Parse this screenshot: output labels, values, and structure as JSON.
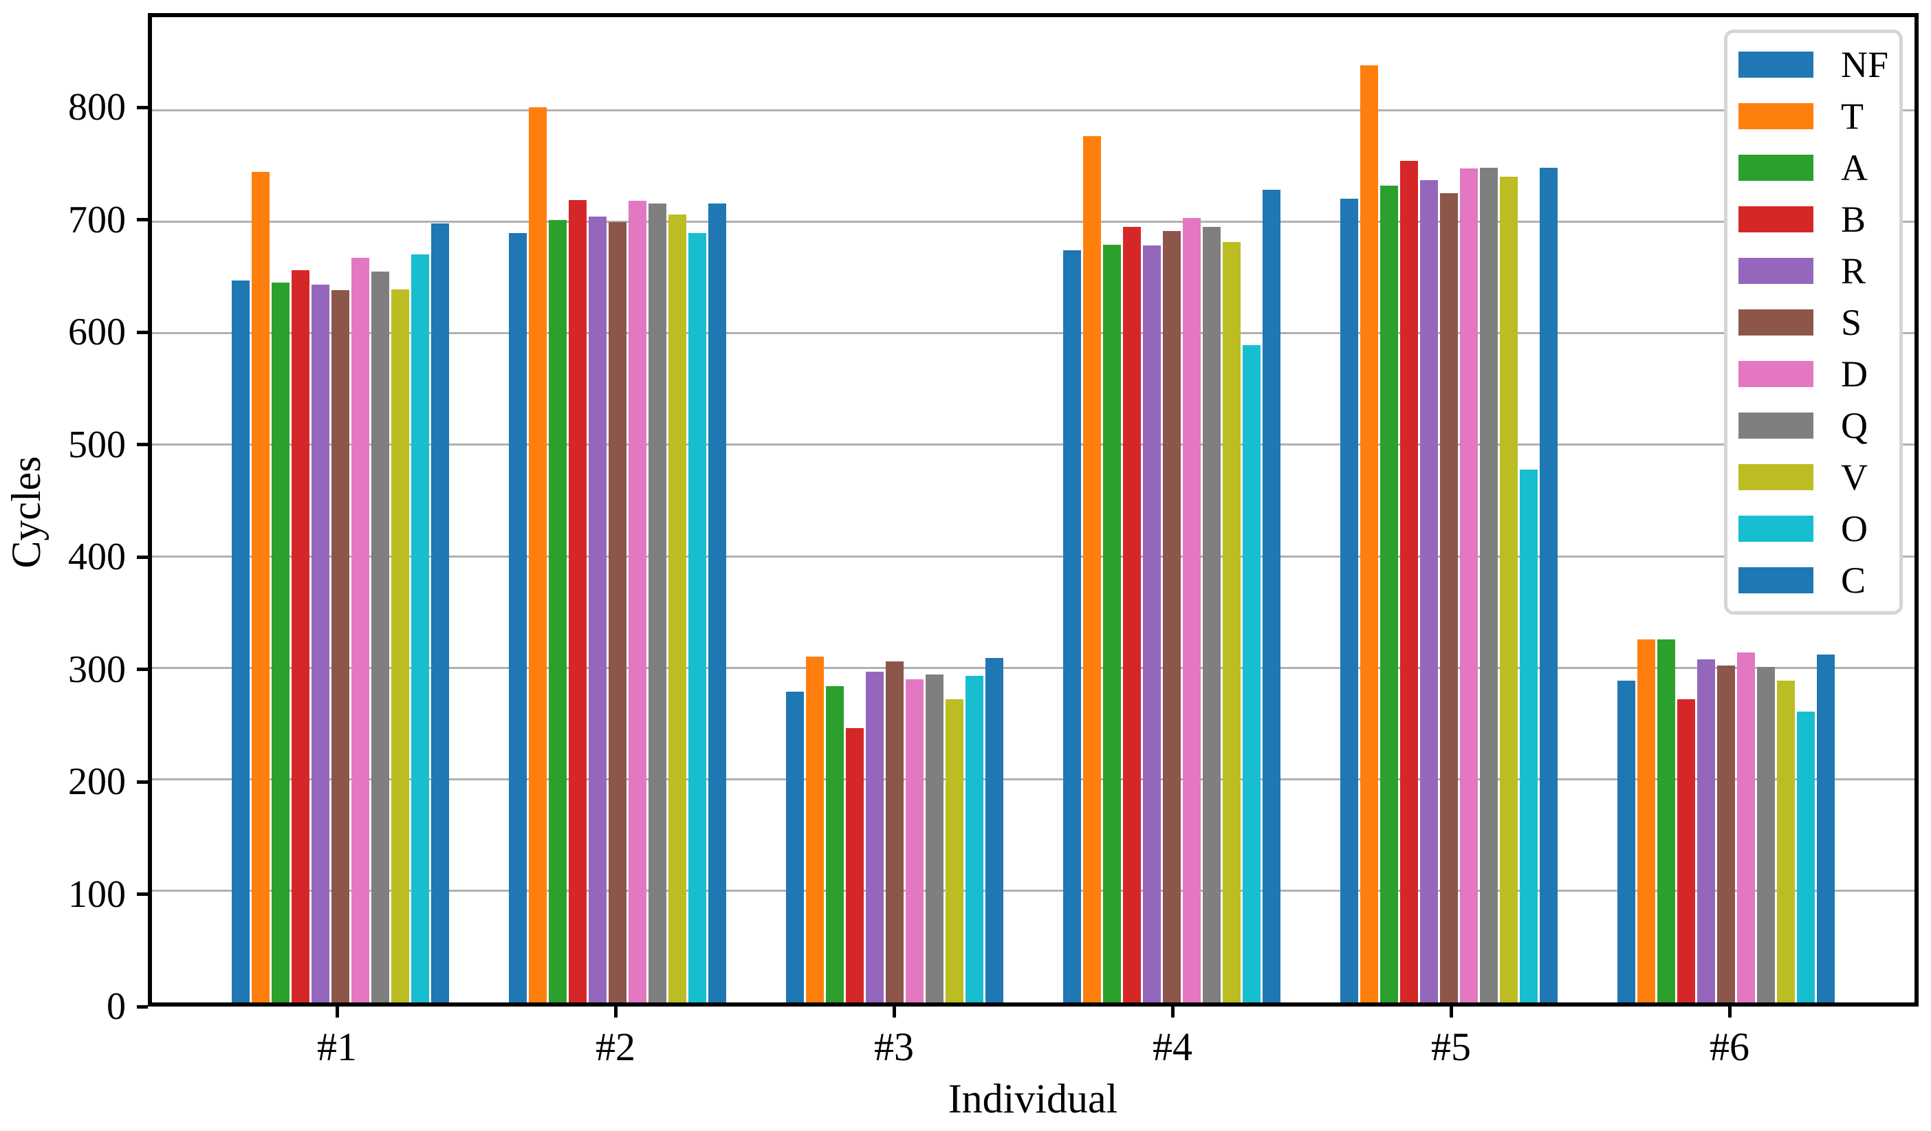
{
  "figure": {
    "background": "#ffffff",
    "axis_color": "#000000",
    "gridline_color": "#b0b0b0"
  },
  "chart_data": {
    "type": "bar",
    "title": "",
    "xlabel": "Individual",
    "ylabel": "Cycles",
    "categories": [
      "#1",
      "#2",
      "#3",
      "#4",
      "#5",
      "#6"
    ],
    "series": [
      {
        "name": "NF",
        "color": "#1f77b4",
        "values": [
          648,
          690,
          279,
          675,
          721,
          289
        ]
      },
      {
        "name": "T",
        "color": "#ff7f0e",
        "values": [
          745,
          803,
          310,
          777,
          841,
          326
        ]
      },
      {
        "name": "A",
        "color": "#2ca02c",
        "values": [
          646,
          702,
          284,
          680,
          733,
          326
        ]
      },
      {
        "name": "B",
        "color": "#d62728",
        "values": [
          657,
          720,
          246,
          696,
          755,
          272
        ]
      },
      {
        "name": "R",
        "color": "#9467bd",
        "values": [
          644,
          705,
          297,
          679,
          738,
          308
        ]
      },
      {
        "name": "S",
        "color": "#8c564b",
        "values": [
          639,
          700,
          306,
          692,
          726,
          302
        ]
      },
      {
        "name": "D",
        "color": "#e377c2",
        "values": [
          668,
          719,
          290,
          704,
          748,
          314
        ]
      },
      {
        "name": "Q",
        "color": "#7f7f7f",
        "values": [
          656,
          717,
          294,
          696,
          749,
          301
        ]
      },
      {
        "name": "V",
        "color": "#bcbd22",
        "values": [
          640,
          707,
          272,
          682,
          741,
          289
        ]
      },
      {
        "name": "O",
        "color": "#17becf",
        "values": [
          671,
          690,
          293,
          590,
          478,
          261
        ]
      },
      {
        "name": "C",
        "color": "#1f77b4",
        "values": [
          699,
          717,
          309,
          729,
          749,
          312
        ]
      }
    ],
    "ylim": [
      0,
      884
    ],
    "yticks": [
      0,
      100,
      200,
      300,
      400,
      500,
      600,
      700,
      800
    ],
    "grid": "horizontal",
    "legend_position": "upper right",
    "legend_labels": [
      "NF",
      "T",
      "A",
      "B",
      "R",
      "S",
      "D",
      "Q",
      "V",
      "O",
      "C"
    ]
  }
}
